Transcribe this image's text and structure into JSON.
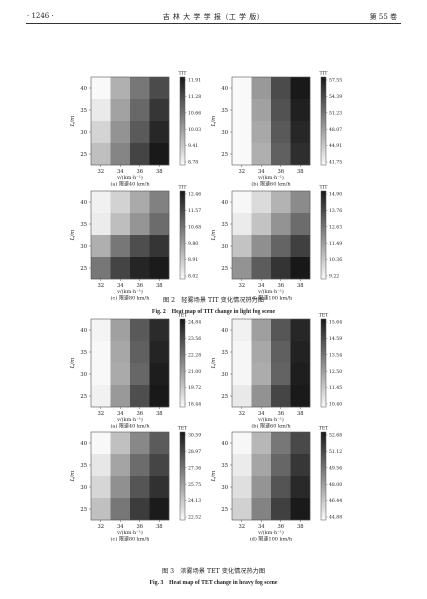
{
  "header": {
    "page_number": "· 1246 ·",
    "journal": "吉 林 大 学 学 报（工 学 版）",
    "volume": "第 55 卷"
  },
  "figures": [
    {
      "caption_cn": "图 2　轻雾场景 TIT 变化情况热力图",
      "caption_en": "Fig. 2　Heat map of TIT change in light fog scene"
    },
    {
      "caption_cn": "图 3　浓雾场景 TET 变化情况热力图",
      "caption_en": "Fig. 3　Heat map of TET change in heavy fog scene"
    }
  ],
  "chart_data": [
    {
      "type": "heatmap",
      "xlabel": "v/(km·h⁻¹)",
      "ylabel": "L/m",
      "x": [
        "32",
        "34",
        "36",
        "38"
      ],
      "y": [
        "40",
        "35",
        "30",
        "25"
      ],
      "subcaption": "(a) 限速40 km/h",
      "colorbar_label": "TIT",
      "colorbar_ticks": [
        "11.91",
        "11.28",
        "10.66",
        "10.03",
        "9.41",
        "8.78"
      ],
      "vmin": 8.78,
      "vmax": 11.91,
      "values": [
        [
          8.8,
          9.8,
          10.6,
          11.2
        ],
        [
          9.0,
          10.0,
          10.8,
          11.5
        ],
        [
          9.3,
          10.2,
          11.0,
          11.7
        ],
        [
          9.6,
          10.4,
          11.3,
          11.9
        ]
      ]
    },
    {
      "type": "heatmap",
      "xlabel": "v/(km·h⁻¹)",
      "ylabel": "L/m",
      "x": [
        "32",
        "34",
        "36",
        "38"
      ],
      "y": [
        "40",
        "35",
        "30",
        "25"
      ],
      "subcaption": "(b) 限速60 km/h",
      "colorbar_label": "TIT",
      "colorbar_ticks": [
        "57.55",
        "54.39",
        "51.23",
        "48.07",
        "44.91",
        "41.75"
      ],
      "vmin": 41.75,
      "vmax": 57.55,
      "values": [
        [
          41.8,
          48.5,
          54.0,
          57.5
        ],
        [
          41.8,
          48.0,
          53.5,
          57.0
        ],
        [
          41.8,
          47.5,
          53.0,
          56.5
        ],
        [
          41.8,
          47.0,
          52.5,
          56.0
        ]
      ]
    },
    {
      "type": "heatmap",
      "xlabel": "v/(km·h⁻¹)",
      "ylabel": "L/m",
      "x": [
        "32",
        "34",
        "36",
        "38"
      ],
      "y": [
        "40",
        "35",
        "30",
        "25"
      ],
      "subcaption": "(c) 限速80 km/h",
      "colorbar_label": "TIT",
      "colorbar_ticks": [
        "12.46",
        "11.57",
        "10.68",
        "9.80",
        "8.91",
        "8.02"
      ],
      "vmin": 8.02,
      "vmax": 12.46,
      "values": [
        [
          8.2,
          8.8,
          9.6,
          10.4
        ],
        [
          8.3,
          9.2,
          10.0,
          10.8
        ],
        [
          9.5,
          10.6,
          11.4,
          11.9
        ],
        [
          10.6,
          11.6,
          12.2,
          12.4
        ]
      ]
    },
    {
      "type": "heatmap",
      "xlabel": "v/(km·h⁻¹)",
      "ylabel": "L/m",
      "x": [
        "32",
        "34",
        "36",
        "38"
      ],
      "y": [
        "40",
        "35",
        "30",
        "25"
      ],
      "subcaption": "(d) 限速100 km/h",
      "colorbar_label": "TIT",
      "colorbar_ticks": [
        "14.90",
        "13.76",
        "12.63",
        "11.49",
        "10.36",
        "9.22"
      ],
      "vmin": 9.22,
      "vmax": 14.9,
      "values": [
        [
          9.3,
          10.0,
          11.0,
          12.0
        ],
        [
          9.6,
          10.6,
          11.8,
          12.8
        ],
        [
          10.6,
          11.9,
          13.0,
          13.9
        ],
        [
          11.8,
          13.2,
          14.2,
          14.9
        ]
      ]
    },
    {
      "type": "heatmap",
      "xlabel": "v/(km·h⁻¹)",
      "ylabel": "L/m",
      "x": [
        "32",
        "34",
        "36",
        "38"
      ],
      "y": [
        "40",
        "35",
        "30",
        "25"
      ],
      "subcaption": "(a) 限速40 km/h",
      "colorbar_label": "TET",
      "colorbar_ticks": [
        "24.84",
        "23.56",
        "22.28",
        "21.00",
        "19.72",
        "18.44"
      ],
      "vmin": 18.44,
      "vmax": 24.84,
      "values": [
        [
          18.6,
          21.0,
          23.0,
          24.3
        ],
        [
          18.5,
          20.8,
          22.8,
          24.5
        ],
        [
          18.5,
          20.7,
          22.6,
          24.7
        ],
        [
          18.7,
          21.2,
          23.3,
          24.8
        ]
      ]
    },
    {
      "type": "heatmap",
      "xlabel": "v/(km·h⁻¹)",
      "ylabel": "L/m",
      "x": [
        "32",
        "34",
        "36",
        "38"
      ],
      "y": [
        "40",
        "35",
        "30",
        "25"
      ],
      "subcaption": "(b) 限速60 km/h",
      "colorbar_label": "TET",
      "colorbar_ticks": [
        "15.64",
        "14.59",
        "13.54",
        "12.50",
        "11.45",
        "10.40"
      ],
      "vmin": 10.4,
      "vmax": 15.64,
      "values": [
        [
          10.6,
          12.5,
          14.2,
          15.3
        ],
        [
          10.5,
          12.3,
          14.0,
          15.4
        ],
        [
          10.5,
          12.2,
          13.9,
          15.5
        ],
        [
          10.8,
          12.8,
          14.6,
          15.6
        ]
      ]
    },
    {
      "type": "heatmap",
      "xlabel": "v/(km·h⁻¹)",
      "ylabel": "L/m",
      "x": [
        "32",
        "34",
        "36",
        "38"
      ],
      "y": [
        "40",
        "35",
        "30",
        "25"
      ],
      "subcaption": "(c) 限速80 km/h",
      "colorbar_label": "TET",
      "colorbar_ticks": [
        "30.59",
        "28.97",
        "27.36",
        "25.75",
        "24.13",
        "22.52"
      ],
      "vmin": 22.52,
      "vmax": 30.59,
      "values": [
        [
          22.6,
          24.6,
          26.6,
          28.2
        ],
        [
          23.2,
          25.6,
          27.6,
          29.0
        ],
        [
          23.8,
          26.3,
          28.4,
          29.7
        ],
        [
          24.6,
          27.2,
          29.3,
          30.5
        ]
      ]
    },
    {
      "type": "heatmap",
      "xlabel": "v/(km·h⁻¹)",
      "ylabel": "L/m",
      "x": [
        "32",
        "34",
        "36",
        "38"
      ],
      "y": [
        "40",
        "35",
        "30",
        "25"
      ],
      "subcaption": "(d) 限速100 km/h",
      "colorbar_label": "TET",
      "colorbar_ticks": [
        "52.68",
        "51.12",
        "49.56",
        "48.00",
        "46.44",
        "44.88"
      ],
      "vmin": 44.88,
      "vmax": 52.68,
      "values": [
        [
          45.0,
          47.2,
          49.4,
          51.0
        ],
        [
          45.4,
          47.8,
          50.0,
          51.6
        ],
        [
          45.8,
          48.4,
          50.6,
          52.1
        ],
        [
          46.3,
          49.0,
          51.3,
          52.6
        ]
      ]
    }
  ]
}
